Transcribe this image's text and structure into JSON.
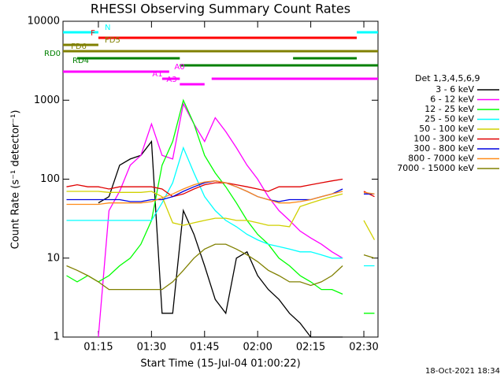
{
  "chart_data": {
    "type": "line",
    "title": "RHESSI Observing Summary Count Rates",
    "x_label": "Start Time (15-Jul-04 01:00:22)",
    "y_label": "Count Rate (s⁻¹ detector⁻¹)",
    "legend_title": "Det 1,3,4,5,6,9",
    "footer": "18-Oct-2021 18:34",
    "log_y": true,
    "xlim": [
      "01:05",
      "02:34"
    ],
    "xticks": [
      "01:15",
      "01:30",
      "01:45",
      "02:00",
      "02:15",
      "02:30"
    ],
    "ylim": [
      1,
      10000
    ],
    "yticks": [
      1,
      10,
      100,
      1000,
      10000
    ],
    "x": [
      "01:06",
      "01:09",
      "01:12",
      "01:15",
      "01:18",
      "01:21",
      "01:24",
      "01:27",
      "01:30",
      "01:33",
      "01:36",
      "01:39",
      "01:42",
      "01:45",
      "01:48",
      "01:51",
      "01:54",
      "01:57",
      "02:00",
      "02:03",
      "02:06",
      "02:09",
      "02:12",
      "02:15",
      "02:18",
      "02:21",
      "02:24",
      "02:27",
      "02:30",
      "02:33"
    ],
    "series": [
      {
        "name": "3 - 6 keV",
        "color": "#000000",
        "values": [
          null,
          null,
          null,
          50,
          60,
          150,
          180,
          200,
          300,
          2,
          2,
          40,
          20,
          8,
          3,
          2,
          10,
          12,
          6,
          4,
          3,
          2,
          1.5,
          1,
          1,
          1,
          1,
          null,
          null,
          null
        ]
      },
      {
        "name": "6 - 12 keV",
        "color": "#ff00ff",
        "values": [
          null,
          null,
          null,
          1,
          40,
          70,
          150,
          200,
          500,
          200,
          180,
          900,
          500,
          300,
          600,
          400,
          250,
          150,
          100,
          60,
          40,
          30,
          22,
          18,
          15,
          12,
          10,
          null,
          null,
          null
        ]
      },
      {
        "name": "12 - 25 keV",
        "color": "#00ff00",
        "values": [
          6,
          5,
          6,
          5,
          6,
          8,
          10,
          15,
          30,
          150,
          300,
          1000,
          500,
          200,
          120,
          80,
          50,
          30,
          20,
          15,
          10,
          8,
          6,
          5,
          4,
          4,
          3.5,
          null,
          2,
          2
        ]
      },
      {
        "name": "25 - 50 keV",
        "color": "#00ffff",
        "values": [
          30,
          30,
          30,
          30,
          30,
          30,
          30,
          30,
          30,
          50,
          90,
          250,
          120,
          60,
          40,
          30,
          25,
          20,
          17,
          15,
          14,
          13,
          12,
          12,
          11,
          10,
          10,
          null,
          8,
          8
        ]
      },
      {
        "name": "50 - 100 keV",
        "color": "#d0d000",
        "values": [
          70,
          70,
          70,
          70,
          68,
          68,
          68,
          68,
          70,
          60,
          28,
          26,
          28,
          30,
          32,
          32,
          30,
          30,
          28,
          26,
          26,
          25,
          45,
          50,
          55,
          60,
          65,
          null,
          30,
          17
        ]
      },
      {
        "name": "100 - 300 keV",
        "color": "#e00000",
        "values": [
          80,
          85,
          80,
          80,
          75,
          80,
          80,
          80,
          80,
          75,
          60,
          65,
          75,
          85,
          90,
          90,
          85,
          80,
          75,
          70,
          80,
          80,
          80,
          85,
          90,
          95,
          100,
          null,
          70,
          60
        ]
      },
      {
        "name": "300 - 800 keV",
        "color": "#0000e0",
        "values": [
          55,
          55,
          55,
          55,
          55,
          55,
          52,
          52,
          55,
          55,
          60,
          70,
          80,
          90,
          95,
          90,
          80,
          70,
          60,
          55,
          52,
          55,
          55,
          55,
          60,
          65,
          75,
          null,
          65,
          65
        ]
      },
      {
        "name": "800 - 7000 keV",
        "color": "#ff8c1a",
        "values": [
          48,
          48,
          48,
          48,
          50,
          50,
          50,
          50,
          52,
          58,
          65,
          75,
          85,
          92,
          95,
          90,
          80,
          70,
          60,
          55,
          50,
          50,
          52,
          55,
          60,
          65,
          70,
          null,
          68,
          65
        ]
      },
      {
        "name": "7000 - 15000 keV",
        "color": "#808000",
        "values": [
          8,
          7,
          6,
          5,
          4,
          4,
          4,
          4,
          4,
          4,
          5,
          7,
          10,
          13,
          15,
          15,
          13,
          11,
          9,
          7,
          6,
          5,
          5,
          4.5,
          5,
          6,
          8,
          null,
          11,
          10
        ]
      }
    ],
    "flags": [
      {
        "label": "N",
        "color": "#00ffff",
        "segments": [
          [
            "01:05",
            "01:15"
          ],
          [
            "02:28",
            "02:34"
          ]
        ]
      },
      {
        "label": "F",
        "color": "#ff0000",
        "segments": [
          [
            "01:15",
            "02:28"
          ]
        ]
      },
      {
        "label": "FD5",
        "color": "#808000",
        "segments": [
          [
            "01:05",
            "01:15"
          ]
        ]
      },
      {
        "label": "FD6",
        "color": "#808000",
        "segments": [
          [
            "01:05",
            "02:34"
          ]
        ]
      },
      {
        "label": "RD0",
        "color": "#008000",
        "segments": [
          [
            "01:09",
            "01:38"
          ],
          [
            "02:10",
            "02:28"
          ]
        ]
      },
      {
        "label": "RD4",
        "color": "#008000",
        "segments": [
          [
            "01:38",
            "02:34"
          ]
        ]
      },
      {
        "label": "A0",
        "color": "#ff00ff",
        "segments": [
          [
            "01:05",
            "01:35"
          ]
        ]
      },
      {
        "label": "A1",
        "color": "#ff00ff",
        "segments": [
          [
            "01:33",
            "01:38"
          ],
          [
            "01:47",
            "02:28"
          ],
          [
            "02:28",
            "02:34"
          ]
        ]
      },
      {
        "label": "A3",
        "color": "#ff00ff",
        "segments": [
          [
            "01:38",
            "01:45"
          ]
        ]
      }
    ]
  }
}
